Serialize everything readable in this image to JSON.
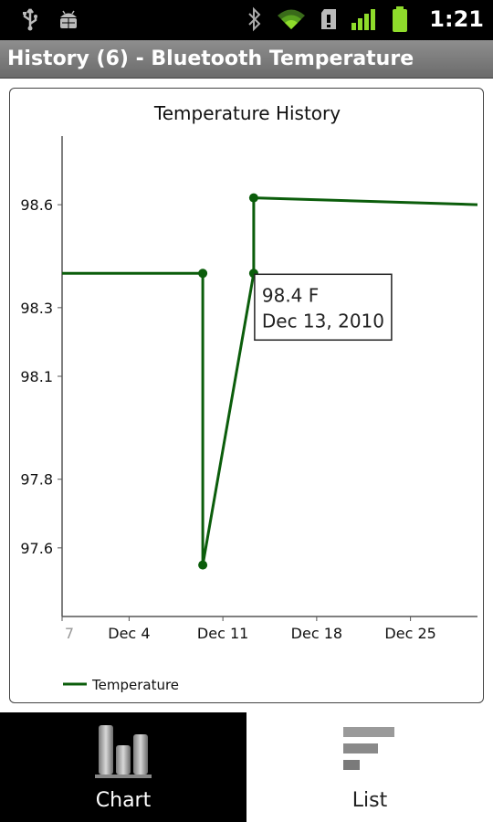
{
  "status_bar": {
    "time": "1:21",
    "icons": [
      "usb-icon",
      "android-debug-icon",
      "bluetooth-icon",
      "wifi-icon",
      "sd-card-icon",
      "signal-icon",
      "battery-icon"
    ]
  },
  "title_bar": {
    "title": "History (6) - Bluetooth Temperature"
  },
  "chart_data": {
    "type": "line",
    "title": "Temperature History",
    "xlabel": "",
    "ylabel": "",
    "y_ticks": [
      "98.6",
      "98.3",
      "98.1",
      "97.8",
      "97.6"
    ],
    "y_tick_values": [
      98.6,
      98.3,
      98.1,
      97.8,
      97.6
    ],
    "x_ticks": [
      "7",
      "Dec 4",
      "Dec 11",
      "Dec 18",
      "Dec 25"
    ],
    "x_tick_days": [
      -1,
      4,
      11,
      18,
      25
    ],
    "xlim_days": [
      -1,
      30
    ],
    "ylim": [
      97.4,
      98.8
    ],
    "series": [
      {
        "name": "Temperature",
        "color": "#0b5d0b",
        "points": [
          {
            "day": -1,
            "value": 98.4
          },
          {
            "day": 9.5,
            "value": 98.4
          },
          {
            "day": 9.5,
            "value": 97.55
          },
          {
            "day": 13.3,
            "value": 98.4
          },
          {
            "day": 13.3,
            "value": 98.62
          },
          {
            "day": 30,
            "value": 98.6
          }
        ],
        "markers": [
          1,
          2,
          3,
          4
        ]
      }
    ],
    "tooltip": {
      "value": "98.4 F",
      "date": "Dec 13, 2010",
      "anchor_point": 3
    },
    "legend": {
      "position": "bottom-left",
      "label": "Temperature"
    },
    "grid": false
  },
  "tabs": [
    {
      "label": "Chart",
      "icon": "bar-chart-icon",
      "selected": true
    },
    {
      "label": "List",
      "icon": "list-icon",
      "selected": false
    }
  ]
}
